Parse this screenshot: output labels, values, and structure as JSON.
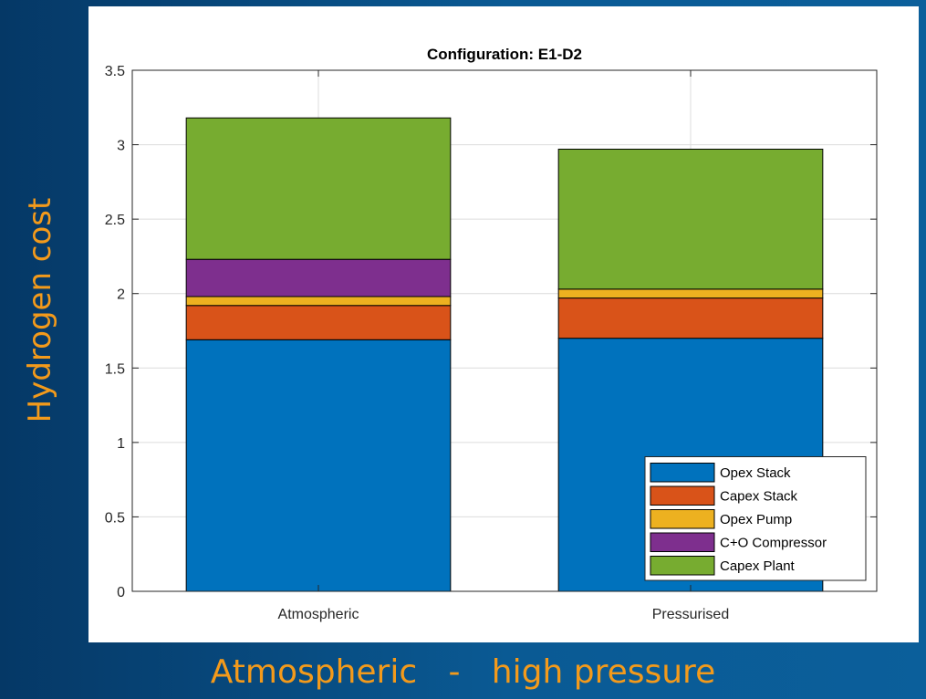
{
  "slide": {
    "y_caption": "Hydrogen cost",
    "x_caption": "Atmospheric   -   high pressure"
  },
  "colors": {
    "background": "#0a5a94",
    "caption": "#f39a1b"
  },
  "chart_data": {
    "type": "bar",
    "stacked": true,
    "title": "Configuration: E1-D2",
    "xlabel": "",
    "ylabel": "",
    "categories": [
      "Atmospheric",
      "Pressurised"
    ],
    "series": [
      {
        "name": "Opex Stack",
        "color": "#0072bd",
        "values": [
          1.69,
          1.7
        ]
      },
      {
        "name": "Capex Stack",
        "color": "#d95319",
        "values": [
          0.23,
          0.27
        ]
      },
      {
        "name": "Opex Pump",
        "color": "#edb120",
        "values": [
          0.06,
          0.06
        ]
      },
      {
        "name": "C+O Compressor",
        "color": "#7e2f8e",
        "values": [
          0.25,
          0.0
        ]
      },
      {
        "name": "Capex Plant",
        "color": "#77ac30",
        "values": [
          0.95,
          0.94
        ]
      }
    ],
    "ylim": [
      0,
      3.5
    ],
    "yticks": [
      "0",
      "0.5",
      "1",
      "1.5",
      "2",
      "2.5",
      "3",
      "3.5"
    ],
    "grid": true,
    "legend_position": "bottom-right"
  }
}
